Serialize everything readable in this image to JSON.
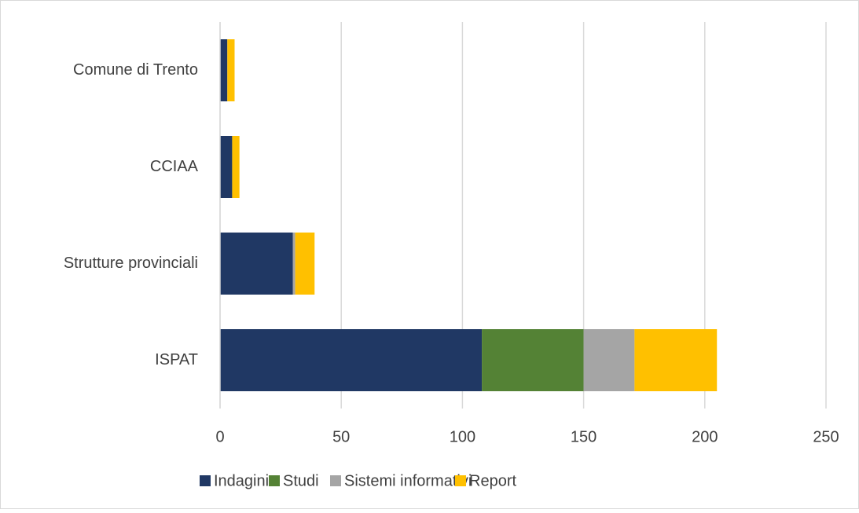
{
  "chart_data": {
    "type": "bar",
    "orientation": "horizontal",
    "stacked": true,
    "categories": [
      "Comune di Trento",
      "CCIAA",
      "Strutture provinciali",
      "ISPAT"
    ],
    "series": [
      {
        "name": "Indagini",
        "color": "#203864",
        "values": [
          3,
          5,
          30,
          108
        ]
      },
      {
        "name": "Studi",
        "color": "#548235",
        "values": [
          0,
          0,
          0,
          42
        ]
      },
      {
        "name": "Sistemi informativi",
        "color": "#a5a5a5",
        "values": [
          0,
          0,
          1,
          21
        ]
      },
      {
        "name": "Report",
        "color": "#ffc000",
        "values": [
          3,
          3,
          8,
          34
        ]
      }
    ],
    "xlim": [
      0,
      250
    ],
    "xticks": [
      0,
      50,
      100,
      150,
      200,
      250
    ],
    "grid": true,
    "legend": "bottom"
  }
}
